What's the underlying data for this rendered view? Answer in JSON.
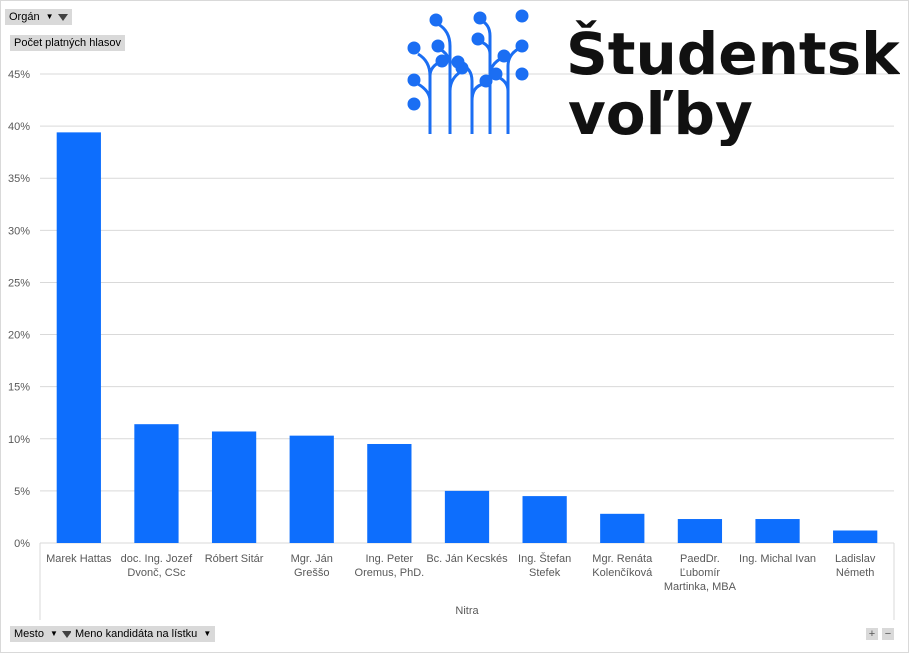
{
  "filters": {
    "organ_label": "Orgán",
    "value_field_label": "Počet platných hlasov",
    "mesto_label": "Mesto",
    "candidate_field_label": "Meno kandidáta na lístku"
  },
  "logo": {
    "line1": "Študentské",
    "line2": "voľby",
    "color": "#1b6ef3"
  },
  "zoom": {
    "plus": "+",
    "minus": "−"
  },
  "chart_data": {
    "type": "bar",
    "group_label": "Nitra",
    "bar_color": "#0d6efd",
    "ylim": [
      0,
      45
    ],
    "y_ticks": [
      "0%",
      "5%",
      "10%",
      "15%",
      "20%",
      "25%",
      "30%",
      "35%",
      "40%",
      "45%"
    ],
    "categories": [
      "Marek Hattas",
      "doc. Ing. Jozef Dvonč, CSc",
      "Róbert Sitár",
      "Mgr. Ján Greššo",
      "Ing. Peter Oremus, PhD.",
      "Bc. Ján Kecskés",
      "Ing. Štefan Stefek",
      "Mgr. Renáta Kolenčíková",
      "PaedDr. Ľubomír Martinka, MBA",
      "Ing. Michal Ivan",
      "Ladislav Németh"
    ],
    "category_lines": [
      [
        "Marek Hattas"
      ],
      [
        "doc. Ing. Jozef",
        "Dvonč, CSc"
      ],
      [
        "Róbert Sitár"
      ],
      [
        "Mgr. Ján",
        "Greššo"
      ],
      [
        "Ing. Peter",
        "Oremus, PhD."
      ],
      [
        "Bc. Ján Kecskés"
      ],
      [
        "Ing. Štefan",
        "Stefek"
      ],
      [
        "Mgr. Renáta",
        "Kolenčíková"
      ],
      [
        "PaedDr.",
        "Ľubomír",
        "Martinka, MBA"
      ],
      [
        "Ing. Michal Ivan"
      ],
      [
        "Ladislav",
        "Németh"
      ]
    ],
    "values": [
      39.4,
      11.4,
      10.7,
      10.3,
      9.5,
      5.0,
      4.5,
      2.8,
      2.3,
      2.3,
      1.2
    ],
    "grid": true,
    "legend": "none"
  }
}
